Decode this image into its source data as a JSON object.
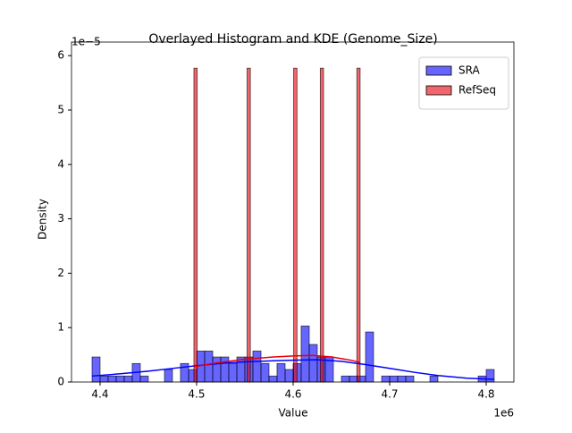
{
  "chart_data": {
    "type": "histogram",
    "title": "Overlayed Histogram and KDE (Genome_Size)",
    "x_label": "Value",
    "y_label": "Density",
    "x_offset_label": "1e6",
    "y_offset_label": "1e−5",
    "xlim": [
      4.3704,
      4.8287
    ],
    "ylim": [
      0,
      6.25
    ],
    "xticks": [
      4.4,
      4.5,
      4.6,
      4.7,
      4.8
    ],
    "yticks": [
      0,
      1,
      2,
      3,
      4,
      5,
      6
    ],
    "legend": "upper right",
    "series": [
      {
        "name": "SRA",
        "color": "#0000ff",
        "bins": [
          4.3917,
          4.4,
          4.4083,
          4.4167,
          4.425,
          4.4333,
          4.4417,
          4.45,
          4.4583,
          4.4667,
          4.475,
          4.4833,
          4.4917,
          4.5,
          4.5083,
          4.5167,
          4.525,
          4.5333,
          4.5417,
          4.55,
          4.5583,
          4.5667,
          4.575,
          4.5833,
          4.5917,
          4.6,
          4.6083,
          4.6167,
          4.625,
          4.6333,
          4.6417,
          4.65,
          4.6583,
          4.6667,
          4.675,
          4.6833,
          4.6917,
          4.7,
          4.7083,
          4.7167,
          4.725,
          4.7333,
          4.7417,
          4.75,
          4.7583,
          4.7667,
          4.775,
          4.7833,
          4.7917,
          4.8,
          4.8083
        ],
        "values": [
          0.46,
          0.11,
          0.11,
          0.11,
          0.11,
          0.34,
          0.11,
          0,
          0,
          0.23,
          0,
          0.34,
          0.23,
          0.57,
          0.57,
          0.46,
          0.46,
          0.34,
          0.46,
          0.46,
          0.57,
          0.34,
          0.11,
          0.34,
          0.23,
          0.34,
          1.03,
          0.69,
          0.46,
          0.46,
          0,
          0.11,
          0.11,
          0.11,
          0.92,
          0,
          0.11,
          0.11,
          0.11,
          0.11,
          0,
          0,
          0.11,
          0,
          0,
          0,
          0,
          0,
          0.11,
          0.23
        ],
        "kde": {
          "x": [
            4.3917,
            4.42,
            4.45,
            4.48,
            4.5,
            4.53,
            4.55,
            4.58,
            4.6,
            4.625,
            4.65,
            4.675,
            4.7,
            4.725,
            4.75,
            4.78,
            4.8083
          ],
          "y": [
            0.11,
            0.15,
            0.2,
            0.26,
            0.3,
            0.35,
            0.37,
            0.39,
            0.4,
            0.41,
            0.38,
            0.32,
            0.25,
            0.18,
            0.12,
            0.07,
            0.05
          ]
        }
      },
      {
        "name": "RefSeq",
        "color": "#e8000b",
        "bins": [
          4.4972,
          4.5006,
          4.5041,
          4.5075,
          4.511,
          4.5144,
          4.5179,
          4.5213,
          4.5248,
          4.5282,
          4.5316,
          4.5351,
          4.5385,
          4.542,
          4.5454,
          4.5489,
          4.5523,
          4.5557,
          4.5592,
          4.5626,
          4.5661,
          4.5695,
          4.573,
          4.5764,
          4.5799,
          4.5833,
          4.5867,
          4.5902,
          4.5936,
          4.5971,
          4.6005,
          4.604,
          4.6074,
          4.6109,
          4.6143,
          4.6177,
          4.6212,
          4.6246,
          4.6281,
          4.6315,
          4.635,
          4.6384,
          4.6418,
          4.6453,
          4.6487,
          4.6522,
          4.6556,
          4.6591,
          4.6625,
          4.666,
          4.6694
        ],
        "values": [
          5.77,
          0,
          0,
          0,
          0,
          0,
          0,
          0,
          0,
          0,
          0,
          0,
          0,
          0,
          0,
          0,
          5.77,
          0,
          0,
          0,
          0,
          0,
          0,
          0,
          0,
          0,
          0,
          0,
          0,
          0,
          5.77,
          0,
          0,
          0,
          0,
          0,
          0,
          0,
          5.77,
          0,
          0,
          0,
          0,
          0,
          0,
          0,
          0,
          0,
          0,
          5.77
        ],
        "kde": {
          "x": [
            4.4972,
            4.52,
            4.55,
            4.58,
            4.6,
            4.62,
            4.64,
            4.66,
            4.6694
          ],
          "y": [
            0.28,
            0.35,
            0.42,
            0.46,
            0.48,
            0.49,
            0.46,
            0.4,
            0.36
          ]
        }
      }
    ]
  }
}
